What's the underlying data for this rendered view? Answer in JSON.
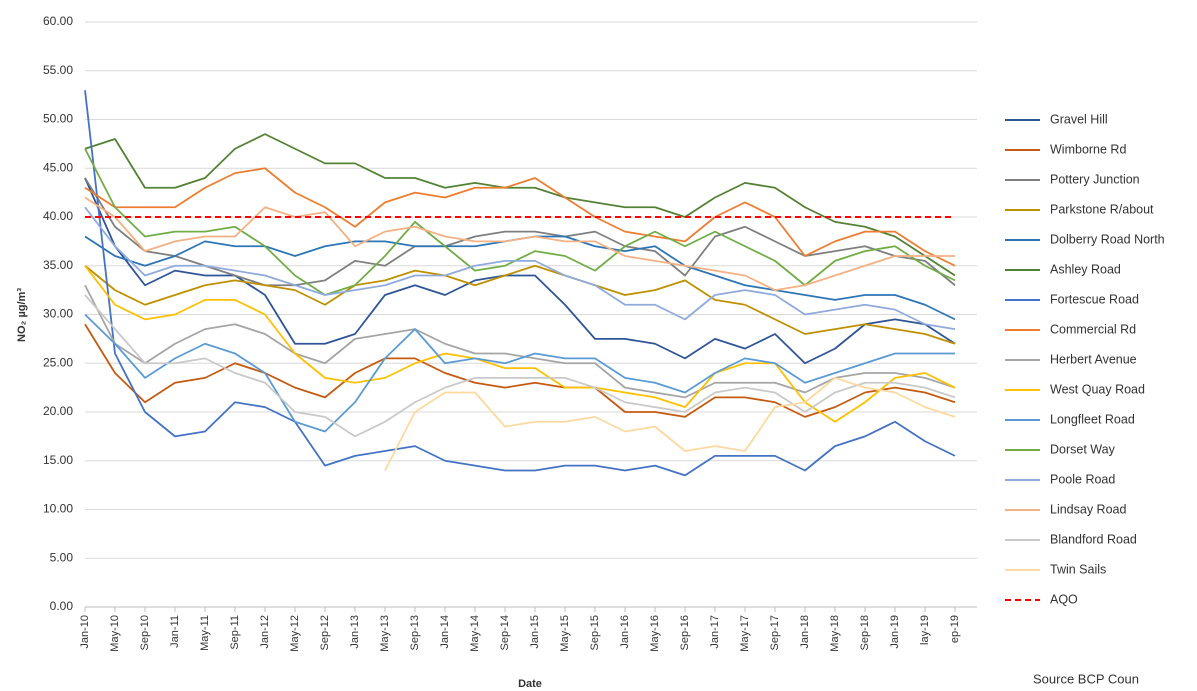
{
  "chart_data": {
    "type": "line",
    "y_label": "NO₂ µg/m³",
    "x_label": "Date",
    "source": "Source BCP Coun",
    "categories": [
      "Jan-10",
      "May-10",
      "Sep-10",
      "Jan-11",
      "May-11",
      "Sep-11",
      "Jan-12",
      "May-12",
      "Sep-12",
      "Jan-13",
      "May-13",
      "Sep-13",
      "Jan-14",
      "May-14",
      "Sep-14",
      "Jan-15",
      "May-15",
      "Sep-15",
      "Jan-16",
      "May-16",
      "Sep-16",
      "Jan-17",
      "May-17",
      "Sep-17",
      "Jan-18",
      "May-18",
      "Sep-18",
      "Jan-19",
      "lay-19",
      "ep-19"
    ],
    "ylim": [
      0,
      60
    ],
    "yticks": [
      {
        "value": 0,
        "label": "0.00"
      },
      {
        "value": 5,
        "label": "5.00"
      },
      {
        "value": 10,
        "label": "10.00"
      },
      {
        "value": 15,
        "label": "15.00"
      },
      {
        "value": 20,
        "label": "20.00"
      },
      {
        "value": 25,
        "label": "25.00"
      },
      {
        "value": 30,
        "label": "30.00"
      },
      {
        "value": 35,
        "label": "35.00"
      },
      {
        "value": 40,
        "label": "40.00"
      },
      {
        "value": 45,
        "label": "45.00"
      },
      {
        "value": 50,
        "label": "50.00"
      },
      {
        "value": 55,
        "label": "55.00"
      },
      {
        "value": 60,
        "label": "60.00"
      }
    ],
    "grid": true,
    "legend": "right",
    "series": [
      {
        "name": "Gravel Hill",
        "color": "#2f5597",
        "values": [
          44,
          37,
          33,
          34.5,
          34,
          34,
          32,
          27,
          27,
          28,
          32,
          33,
          32,
          33.5,
          34,
          34,
          31,
          27.5,
          27.5,
          27,
          25.5,
          27.5,
          26.5,
          28,
          25,
          26.5,
          29,
          29.5,
          29,
          27
        ]
      },
      {
        "name": "Wimborne Rd",
        "color": "#c55a11",
        "values": [
          29,
          24,
          21,
          23,
          23.5,
          25,
          24,
          22.5,
          21.5,
          24,
          25.5,
          25.5,
          24,
          23,
          22.5,
          23,
          22.5,
          22.5,
          20,
          20,
          19.5,
          21.5,
          21.5,
          21,
          19.5,
          20.5,
          22,
          22.5,
          22,
          21
        ]
      },
      {
        "name": "Pottery Junction",
        "color": "#7f7f7f",
        "values": [
          44,
          39,
          36.5,
          36,
          35,
          34,
          33,
          33,
          33.5,
          35.5,
          35,
          37,
          37,
          38,
          38.5,
          38.5,
          38,
          38.5,
          37,
          36.5,
          34,
          38,
          39,
          37.5,
          36,
          36.5,
          37,
          36,
          35.5,
          33
        ]
      },
      {
        "name": "Parkstone R/about",
        "color": "#bf9000",
        "values": [
          35,
          32.5,
          31,
          32,
          33,
          33.5,
          33,
          32.5,
          31,
          33,
          33.5,
          34.5,
          34,
          33,
          34,
          35,
          34,
          33,
          32,
          32.5,
          33.5,
          31.5,
          31,
          29.5,
          28,
          28.5,
          29,
          28.5,
          28,
          27
        ]
      },
      {
        "name": "Dolberry Road North",
        "color": "#2e75b6",
        "values": [
          38,
          36,
          35,
          36,
          37.5,
          37,
          37,
          36,
          37,
          37.5,
          37.5,
          37,
          37,
          37,
          37.5,
          38,
          38,
          37,
          36.5,
          37,
          35,
          34,
          33,
          32.5,
          32,
          31.5,
          32,
          32,
          31,
          29.5
        ]
      },
      {
        "name": "Ashley Road",
        "color": "#548235",
        "values": [
          47,
          48,
          43,
          43,
          44,
          47,
          48.5,
          47,
          45.5,
          45.5,
          44,
          44,
          43,
          43.5,
          43,
          43,
          42,
          41.5,
          41,
          41,
          40,
          42,
          43.5,
          43,
          41,
          39.5,
          39,
          38,
          36,
          34
        ]
      },
      {
        "name": "Fortescue Road",
        "color": "#4472c4",
        "values": [
          53,
          26,
          20,
          17.5,
          18,
          21,
          20.5,
          19,
          14.5,
          15.5,
          16,
          16.5,
          15,
          14.5,
          14,
          14,
          14.5,
          14.5,
          14,
          14.5,
          13.5,
          15.5,
          15.5,
          15.5,
          14,
          16.5,
          17.5,
          19,
          17,
          15.5
        ]
      },
      {
        "name": "Commercial Rd",
        "color": "#ed7d31",
        "values": [
          43,
          41,
          41,
          41,
          43,
          44.5,
          45,
          42.5,
          41,
          39,
          41.5,
          42.5,
          42,
          43,
          43,
          44,
          42,
          40,
          38.5,
          38,
          37.5,
          40,
          41.5,
          40,
          36,
          37.5,
          38.5,
          38.5,
          36.5,
          35
        ]
      },
      {
        "name": "Herbert Avenue",
        "color": "#a5a5a5",
        "values": [
          33,
          27,
          25,
          27,
          28.5,
          29,
          28,
          26,
          25,
          27.5,
          28,
          28.5,
          27,
          26,
          26,
          25.5,
          25,
          25,
          22.5,
          22,
          21.5,
          23,
          23,
          23,
          22,
          23.5,
          24,
          24,
          23.5,
          22.5
        ]
      },
      {
        "name": "West Quay Road",
        "color": "#ffc000",
        "values": [
          35,
          31,
          29.5,
          30,
          31.5,
          31.5,
          30,
          26,
          23.5,
          23,
          23.5,
          25,
          26,
          25.5,
          24.5,
          24.5,
          22.5,
          22.5,
          22,
          21.5,
          20.5,
          24,
          25,
          25,
          21,
          19,
          21,
          23.5,
          24,
          22.5
        ]
      },
      {
        "name": "Longfleet Road",
        "color": "#5b9bd5",
        "values": [
          30,
          27,
          23.5,
          25.5,
          27,
          26,
          24,
          19,
          18,
          21,
          25.5,
          28.5,
          25,
          25.5,
          25,
          26,
          25.5,
          25.5,
          23.5,
          23,
          22,
          24,
          25.5,
          25,
          23,
          24,
          25,
          26,
          26,
          26
        ]
      },
      {
        "name": "Dorset Way",
        "color": "#70ad47",
        "values": [
          47,
          41,
          38,
          38.5,
          38.5,
          39,
          37,
          34,
          32,
          33,
          36,
          39.5,
          37,
          34.5,
          35,
          36.5,
          36,
          34.5,
          37,
          38.5,
          37,
          38.5,
          37,
          35.5,
          33,
          35.5,
          36.5,
          37,
          35,
          33.5
        ]
      },
      {
        "name": "Poole Road",
        "color": "#8faadc",
        "values": [
          41,
          37,
          34,
          35,
          35,
          34.5,
          34,
          33,
          32,
          32.5,
          33,
          34,
          34,
          35,
          35.5,
          35.5,
          34,
          33,
          31,
          31,
          29.5,
          32,
          32.5,
          32,
          30,
          30.5,
          31,
          30.5,
          29,
          28.5
        ]
      },
      {
        "name": "Lindsay Road",
        "color": "#f4b183",
        "values": [
          42,
          40,
          36.5,
          37.5,
          38,
          38,
          41,
          40,
          40.5,
          37,
          38.5,
          39,
          38,
          37.5,
          37.5,
          38,
          37.5,
          37.5,
          36,
          35.5,
          35,
          34.5,
          34,
          32.5,
          33,
          34,
          35,
          36,
          36,
          36
        ]
      },
      {
        "name": "Blandford Road",
        "color": "#c9c9c9",
        "values": [
          32,
          28.5,
          25,
          25,
          25.5,
          24,
          23,
          20,
          19.5,
          17.5,
          19,
          21,
          22.5,
          23.5,
          23.5,
          23.5,
          23.5,
          22.5,
          21,
          20.5,
          20,
          22,
          22.5,
          22,
          20,
          22,
          23,
          23,
          22.5,
          21.5
        ]
      },
      {
        "name": "Twin Sails",
        "color": "#fdd9a0",
        "values": [
          null,
          null,
          null,
          null,
          null,
          null,
          null,
          null,
          null,
          null,
          14,
          20,
          22,
          22,
          18.5,
          19,
          19,
          19.5,
          18,
          18.5,
          16,
          16.5,
          16,
          20.5,
          21,
          23.5,
          22.5,
          22,
          20.5,
          19.5
        ]
      },
      {
        "name": "AQO",
        "color": "#ff0000",
        "dash": true,
        "values": [
          40,
          40,
          40,
          40,
          40,
          40,
          40,
          40,
          40,
          40,
          40,
          40,
          40,
          40,
          40,
          40,
          40,
          40,
          40,
          40,
          40,
          40,
          40,
          40,
          40,
          40,
          40,
          40,
          40,
          40
        ]
      }
    ]
  }
}
